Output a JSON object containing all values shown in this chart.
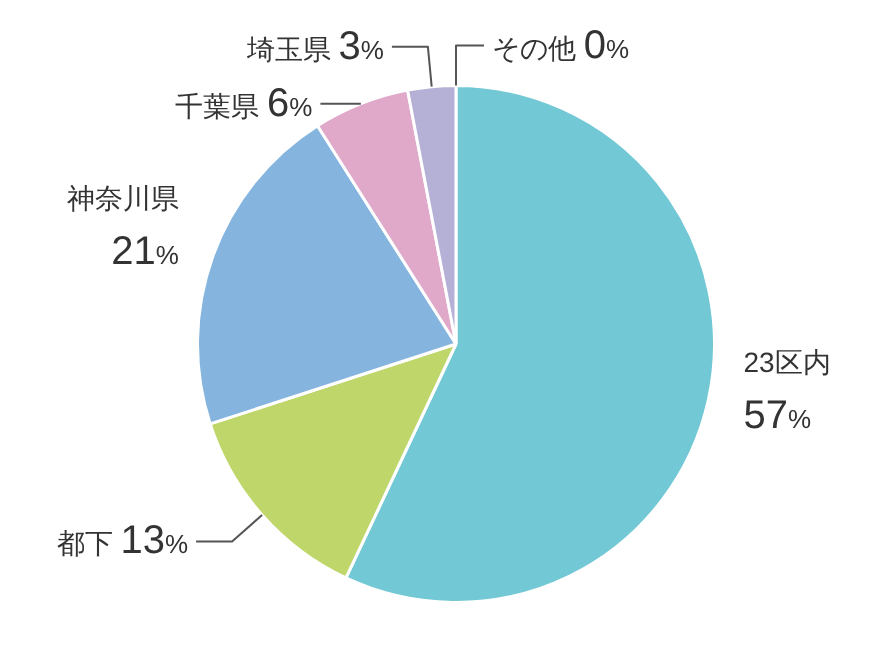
{
  "chart_data": {
    "type": "pie",
    "categories": [
      "23区内",
      "都下",
      "神奈川県",
      "千葉県",
      "埼玉県",
      "その他"
    ],
    "values": [
      57,
      13,
      21,
      6,
      3,
      0
    ],
    "colors": [
      "#72c8d5",
      "#bfd66b",
      "#85b5de",
      "#e0a9c9",
      "#b5b0d6",
      "#c8c8c8"
    ],
    "value_labels": [
      "57%",
      "13%",
      "21%",
      "6%",
      "3%",
      "0%"
    ]
  }
}
